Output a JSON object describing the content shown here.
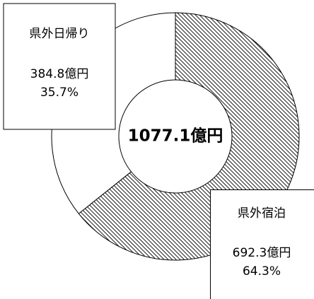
{
  "chart_data": {
    "type": "donut",
    "center_label": "1077.1億円",
    "categories": [
      "県外宿泊",
      "県外日帰り"
    ],
    "values": [
      692.3,
      384.8
    ],
    "value_labels": [
      "692.3億円",
      "384.8億円"
    ],
    "percent_labels": [
      "64.3%",
      "35.7%"
    ],
    "colors": [
      "#000000",
      "#ffffff"
    ],
    "hatch": [
      true,
      false
    ]
  }
}
